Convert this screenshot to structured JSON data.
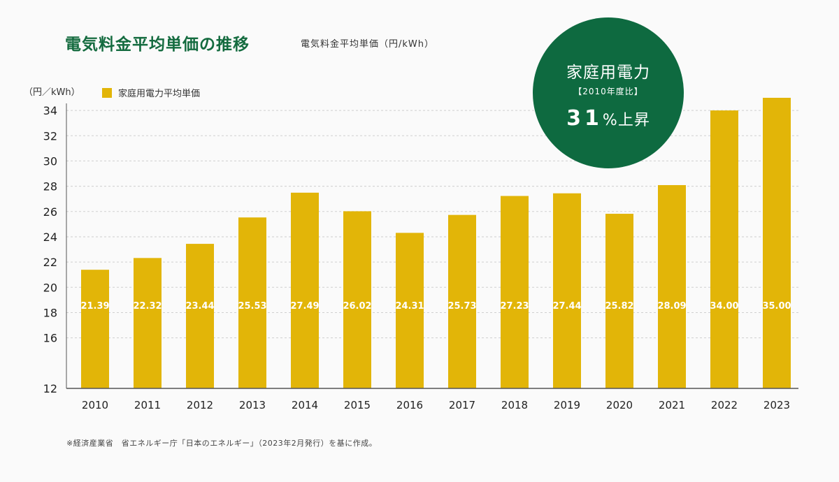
{
  "header": {
    "title": "電気料金平均単価の推移",
    "subtitle": "電気料金平均単価（円/kWh）"
  },
  "badge": {
    "title": "家庭用電力",
    "subtitle": "【2010年度比】",
    "value": "31",
    "value_suffix": "%上昇",
    "color": "#0e6a40"
  },
  "footnote": "※経済産業省　省エネルギー庁「日本のエネルギー」（2023年2月発行）を基に作成。",
  "colors": {
    "title": "#146b3f",
    "bar": "#e2b508",
    "bar_label": "#ffffff"
  },
  "chart_data": {
    "type": "bar",
    "ylabel": "（円／kWh）",
    "legend": "家庭用電力平均単価",
    "legend_position": "top-left",
    "grid": true,
    "ylim": [
      12,
      35
    ],
    "yticks": [
      12,
      16,
      18,
      20,
      22,
      24,
      26,
      28,
      30,
      32,
      34
    ],
    "categories": [
      "2010",
      "2011",
      "2012",
      "2013",
      "2014",
      "2015",
      "2016",
      "2017",
      "2018",
      "2019",
      "2020",
      "2021",
      "2022",
      "2023"
    ],
    "values": [
      21.39,
      22.32,
      23.44,
      25.53,
      27.49,
      26.02,
      24.31,
      25.73,
      27.23,
      27.44,
      25.82,
      28.09,
      34.0,
      35.0
    ],
    "data_labels": [
      "21.39",
      "22.32",
      "23.44",
      "25.53",
      "27.49",
      "26.02",
      "24.31",
      "25.73",
      "27.23",
      "27.44",
      "25.82",
      "28.09",
      "34.00",
      "35.00"
    ]
  }
}
